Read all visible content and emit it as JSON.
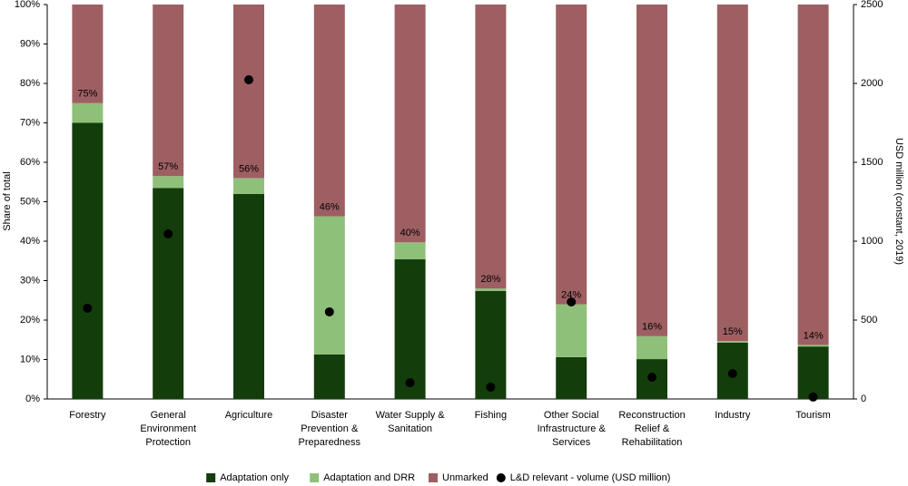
{
  "chart_data": {
    "type": "stacked-bar",
    "categories": [
      "Forestry",
      "General Environment Protection",
      "Agriculture",
      "Disaster Prevention & Preparedness",
      "Water Supply & Sanitation",
      "Fishing",
      "Other Social Infrastructure & Services",
      "Reconstruction Relief & Rehabilitation",
      "Industry",
      "Tourism"
    ],
    "series": [
      {
        "name": "Adaptation only",
        "color": "#143d0c",
        "values": [
          70,
          53.5,
          52,
          11.3,
          35.4,
          27.4,
          10.6,
          10.1,
          14.3,
          13.3
        ]
      },
      {
        "name": "Adaptation and DRR",
        "color": "#8fc07a",
        "values": [
          5,
          3,
          4,
          35,
          4.3,
          0.6,
          13.4,
          5.8,
          0.4,
          0.4
        ]
      },
      {
        "name": "Unmarked",
        "color": "#9e5f63",
        "values": [
          25,
          43.5,
          44,
          53.7,
          60.3,
          72,
          76,
          84.1,
          85.3,
          86.3
        ]
      },
      {
        "name": "L&D relevant - volume (USD million)",
        "color": "#000000",
        "axis": "y2",
        "marker": "circle",
        "values": [
          575,
          1046,
          2023,
          552,
          103,
          75,
          615,
          138,
          161,
          12
        ]
      }
    ],
    "total_labels": {
      "values": [
        75,
        56.5,
        56,
        46.3,
        39.7,
        28,
        24,
        15.9,
        14.7,
        13.7
      ],
      "value_labels": [
        "75%",
        "57%",
        "56%",
        "46%",
        "40%",
        "28%",
        "24%",
        "16%",
        "15%",
        "14%"
      ]
    },
    "y_label": "Share of total",
    "y2_label": "USD million (constant, 2019)",
    "ylim": [
      0,
      100
    ],
    "yticks": [
      {
        "value": 0,
        "label": "0%"
      },
      {
        "value": 10,
        "label": "10%"
      },
      {
        "value": 20,
        "label": "20%"
      },
      {
        "value": 30,
        "label": "30%"
      },
      {
        "value": 40,
        "label": "40%"
      },
      {
        "value": 50,
        "label": "50%"
      },
      {
        "value": 60,
        "label": "60%"
      },
      {
        "value": 70,
        "label": "70%"
      },
      {
        "value": 80,
        "label": "80%"
      },
      {
        "value": 90,
        "label": "90%"
      },
      {
        "value": 100,
        "label": "100%"
      }
    ],
    "y2lim": [
      0,
      2500
    ],
    "y2ticks": [
      0,
      500,
      1000,
      1500,
      2000,
      2500
    ],
    "legend": "bottom"
  }
}
